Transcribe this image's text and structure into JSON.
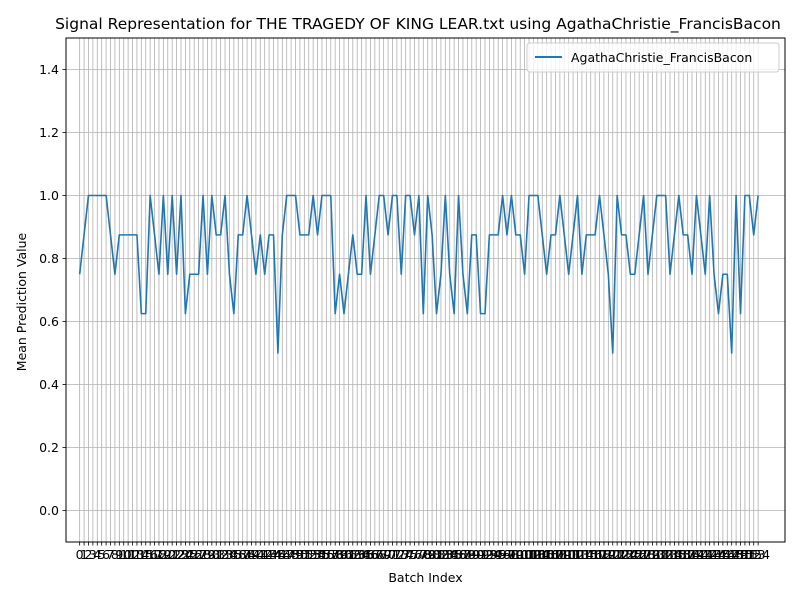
{
  "chart_data": {
    "type": "line",
    "title": "Signal Representation for THE TRAGEDY OF KING LEAR.txt using AgathaChristie_FrancisBacon",
    "xlabel": "Batch Index",
    "ylabel": "Mean Prediction Value",
    "xlim": [
      -3.1,
      160.1
    ],
    "ylim": [
      -0.1,
      1.5
    ],
    "yticks": [
      0.0,
      0.2,
      0.4,
      0.6,
      0.8,
      1.0,
      1.2,
      1.4
    ],
    "ytick_labels": [
      "0.0",
      "0.2",
      "0.4",
      "0.6",
      "0.8",
      "1.0",
      "1.2",
      "1.4"
    ],
    "grid": true,
    "legend_position": "top-right",
    "series": [
      {
        "name": "AgathaChristie_FrancisBacon",
        "color": "#1f77b4",
        "values": [
          0.75,
          0.875,
          1.0,
          1.0,
          1.0,
          1.0,
          1.0,
          0.875,
          0.75,
          0.875,
          0.875,
          0.875,
          0.875,
          0.875,
          0.625,
          0.625,
          1.0,
          0.875,
          0.75,
          1.0,
          0.75,
          1.0,
          0.75,
          1.0,
          0.625,
          0.75,
          0.75,
          0.75,
          1.0,
          0.75,
          1.0,
          0.875,
          0.875,
          1.0,
          0.75,
          0.625,
          0.875,
          0.875,
          1.0,
          0.875,
          0.75,
          0.875,
          0.75,
          0.875,
          0.875,
          0.5,
          0.875,
          1.0,
          1.0,
          1.0,
          0.875,
          0.875,
          0.875,
          1.0,
          0.875,
          1.0,
          1.0,
          1.0,
          0.625,
          0.75,
          0.625,
          0.75,
          0.875,
          0.75,
          0.75,
          1.0,
          0.75,
          0.875,
          1.0,
          1.0,
          0.875,
          1.0,
          1.0,
          0.75,
          1.0,
          1.0,
          0.875,
          1.0,
          0.625,
          1.0,
          0.875,
          0.625,
          0.75,
          1.0,
          0.75,
          0.625,
          1.0,
          0.75,
          0.625,
          0.875,
          0.875,
          0.625,
          0.625,
          0.875,
          0.875,
          0.875,
          1.0,
          0.875,
          1.0,
          0.875,
          0.875,
          0.75,
          1.0,
          1.0,
          1.0,
          0.875,
          0.75,
          0.875,
          0.875,
          1.0,
          0.875,
          0.75,
          0.875,
          1.0,
          0.75,
          0.875,
          0.875,
          0.875,
          1.0,
          0.875,
          0.75,
          0.5,
          1.0,
          0.875,
          0.875,
          0.75,
          0.75,
          0.875,
          1.0,
          0.75,
          0.875,
          1.0,
          1.0,
          1.0,
          0.75,
          0.875,
          1.0,
          0.875,
          0.875,
          0.75,
          1.0,
          0.875,
          0.75,
          1.0,
          0.75,
          0.625,
          0.75,
          0.75,
          0.5,
          1.0,
          0.625,
          1.0,
          1.0,
          0.875,
          1.0
        ]
      }
    ]
  }
}
